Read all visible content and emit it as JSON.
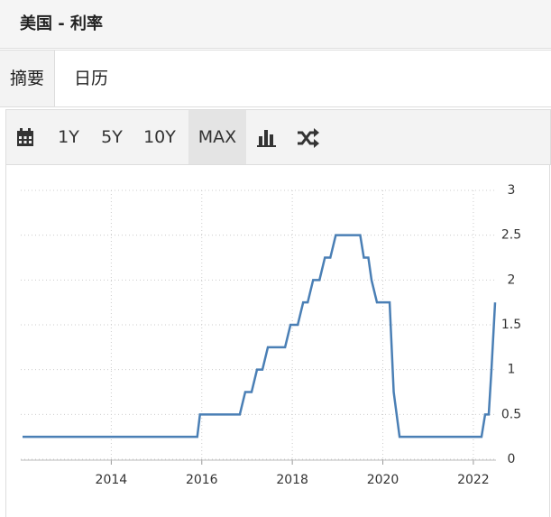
{
  "header": {
    "title": "美国 - 利率"
  },
  "tabs": [
    "摘要",
    "日历"
  ],
  "toolbar": {
    "ranges": [
      "1Y",
      "5Y",
      "10Y",
      "MAX"
    ]
  },
  "chart_data": {
    "type": "line",
    "color": "#4a7fb5",
    "x": [
      2012.04,
      2015.9,
      2015.96,
      2016.84,
      2016.96,
      2017.1,
      2017.22,
      2017.34,
      2017.46,
      2017.84,
      2017.96,
      2018.12,
      2018.24,
      2018.34,
      2018.46,
      2018.6,
      2018.72,
      2018.84,
      2018.96,
      2019.5,
      2019.58,
      2019.68,
      2019.75,
      2019.87,
      2020.15,
      2020.24,
      2020.37,
      2022.18,
      2022.26,
      2022.34,
      2022.4,
      2022.48
    ],
    "values": [
      0.25,
      0.25,
      0.5,
      0.5,
      0.75,
      0.75,
      1,
      1,
      1.25,
      1.25,
      1.5,
      1.5,
      1.75,
      1.75,
      2,
      2,
      2.25,
      2.25,
      2.5,
      2.5,
      2.25,
      2.25,
      2,
      1.75,
      1.75,
      0.75,
      0.25,
      0.25,
      0.5,
      0.5,
      1,
      1.75
    ],
    "xlim": [
      2012,
      2022.5
    ],
    "xticks": [
      2014,
      2016,
      2018,
      2020,
      2022
    ],
    "ylim": [
      0,
      3
    ],
    "yticks": [
      0,
      0.5,
      1,
      1.5,
      2,
      2.5,
      3
    ],
    "grid": true
  }
}
